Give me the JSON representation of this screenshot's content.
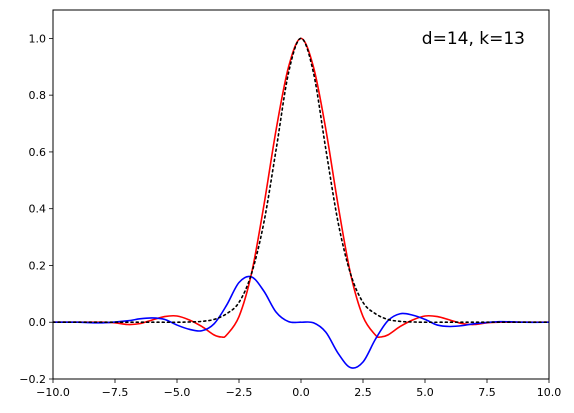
{
  "chart_data": {
    "type": "line",
    "title": "",
    "xlabel": "",
    "ylabel": "",
    "xlim": [
      -10,
      10
    ],
    "ylim": [
      -0.2,
      1.1
    ],
    "xticks": [
      -10.0,
      -7.5,
      -5.0,
      -2.5,
      0.0,
      2.5,
      5.0,
      7.5,
      10.0
    ],
    "xtick_labels": [
      "−10.0",
      "−7.5",
      "−5.0",
      "−2.5",
      "0.0",
      "2.5",
      "5.0",
      "7.5",
      "10.0"
    ],
    "yticks": [
      -0.2,
      0.0,
      0.2,
      0.4,
      0.6,
      0.8,
      1.0
    ],
    "ytick_labels": [
      "−0.2",
      "0.0",
      "0.2",
      "0.4",
      "0.6",
      "0.8",
      "1.0"
    ],
    "grid": false,
    "legend": "none",
    "annotation": "d=14, k=13",
    "series": [
      {
        "color": "#ff0000",
        "style": "solid",
        "x": [
          -10,
          -9,
          -8,
          -7.5,
          -7,
          -6.5,
          -6,
          -5.5,
          -5,
          -4.5,
          -4,
          -3.5,
          -3.2,
          -3,
          -2.5,
          -2,
          -1.5,
          -1,
          -0.5,
          0,
          0.5,
          1,
          1.5,
          2,
          2.5,
          3,
          3.2,
          3.5,
          4,
          4.5,
          5,
          5.5,
          6,
          6.5,
          7,
          7.5,
          8,
          9,
          10
        ],
        "y": [
          0.0,
          0.0,
          0.0,
          -0.002,
          -0.008,
          -0.005,
          0.008,
          0.02,
          0.022,
          0.008,
          -0.015,
          -0.045,
          -0.052,
          -0.045,
          0.02,
          0.17,
          0.41,
          0.68,
          0.9,
          1.0,
          0.9,
          0.68,
          0.41,
          0.17,
          0.02,
          -0.045,
          -0.052,
          -0.045,
          -0.015,
          0.008,
          0.022,
          0.02,
          0.008,
          -0.005,
          -0.008,
          -0.002,
          0.0,
          0.0,
          0.0
        ]
      },
      {
        "color": "#0000ff",
        "style": "solid",
        "x": [
          -10,
          -9,
          -8,
          -7,
          -6.5,
          -6,
          -5.5,
          -5,
          -4.5,
          -4,
          -3.5,
          -3,
          -2.5,
          -2,
          -1.5,
          -1,
          -0.5,
          0,
          0.5,
          1,
          1.5,
          2,
          2.5,
          3,
          3.5,
          4,
          4.5,
          5,
          5.5,
          6,
          6.5,
          7,
          8,
          9,
          10
        ],
        "y": [
          0.0,
          0.0,
          -0.002,
          0.005,
          0.012,
          0.015,
          0.01,
          -0.01,
          -0.025,
          -0.03,
          -0.005,
          0.06,
          0.14,
          0.16,
          0.11,
          0.035,
          0.002,
          0.0,
          -0.002,
          -0.035,
          -0.11,
          -0.16,
          -0.14,
          -0.06,
          0.005,
          0.03,
          0.025,
          0.01,
          -0.01,
          -0.015,
          -0.012,
          -0.005,
          0.002,
          0.0,
          0.0
        ]
      },
      {
        "color": "#000000",
        "style": "dotted",
        "x": [
          -10,
          -6,
          -5,
          -4.5,
          -4,
          -3.5,
          -3,
          -2.5,
          -2,
          -1.5,
          -1,
          -0.5,
          0,
          0.5,
          1,
          1.5,
          2,
          2.5,
          3,
          3.5,
          4,
          4.5,
          5,
          6,
          10
        ],
        "y": [
          0.0,
          0.0,
          0.0,
          0.001,
          0.003,
          0.01,
          0.03,
          0.07,
          0.17,
          0.35,
          0.61,
          0.88,
          1.0,
          0.88,
          0.61,
          0.35,
          0.17,
          0.07,
          0.03,
          0.01,
          0.003,
          0.001,
          0.0,
          0.0,
          0.0
        ]
      }
    ]
  }
}
